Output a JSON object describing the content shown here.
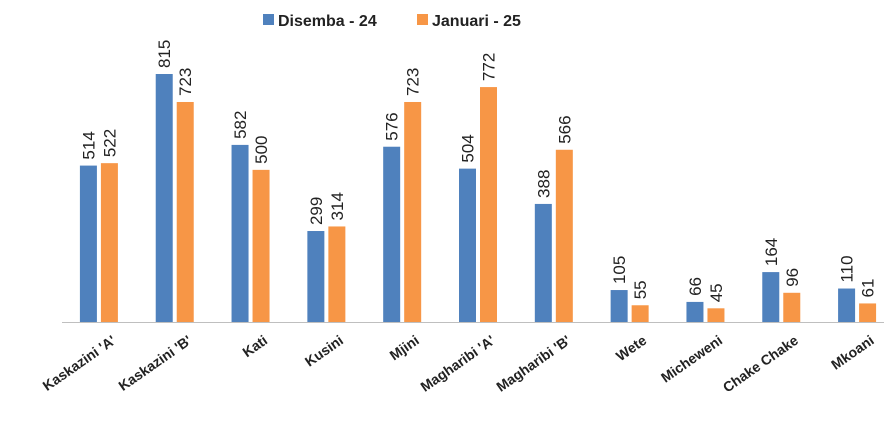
{
  "chart_data": {
    "type": "bar",
    "categories": [
      "Kaskazini 'A'",
      "Kaskazini 'B'",
      "Kati",
      "Kusini",
      "Mjini",
      "Magharibi 'A'",
      "Magharibi 'B'",
      "Wete",
      "Micheweni",
      "Chake Chake",
      "Mkoani"
    ],
    "series": [
      {
        "name": "Disemba - 24",
        "color": "#4f81bd",
        "values": [
          514,
          815,
          582,
          299,
          576,
          504,
          388,
          105,
          66,
          164,
          110
        ]
      },
      {
        "name": "Januari - 25",
        "color": "#f79646",
        "values": [
          522,
          723,
          500,
          314,
          723,
          772,
          566,
          55,
          45,
          96,
          61
        ]
      }
    ],
    "legend": "top"
  }
}
